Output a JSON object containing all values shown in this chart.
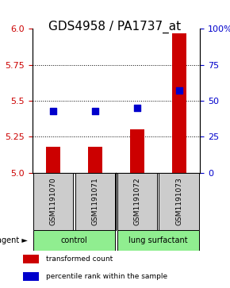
{
  "title": "GDS4958 / PA1737_at",
  "samples": [
    "GSM1191070",
    "GSM1191071",
    "GSM1191072",
    "GSM1191073"
  ],
  "red_values": [
    5.18,
    5.18,
    5.3,
    5.97
  ],
  "blue_values": [
    43,
    43,
    45,
    57
  ],
  "ylim_left": [
    5.0,
    6.0
  ],
  "ylim_right": [
    0,
    100
  ],
  "yticks_left": [
    5.0,
    5.25,
    5.5,
    5.75,
    6.0
  ],
  "yticks_right": [
    0,
    25,
    50,
    75,
    100
  ],
  "groups": [
    {
      "label": "control",
      "span": [
        0,
        2
      ],
      "color": "#90EE90"
    },
    {
      "label": "lung surfactant",
      "span": [
        2,
        4
      ],
      "color": "#90EE90"
    }
  ],
  "group_divider": 2,
  "bar_color": "#CC0000",
  "dot_color": "#0000CC",
  "bar_width": 0.35,
  "dot_size": 40,
  "background_color": "#ffffff",
  "plot_bg_color": "#ffffff",
  "sample_box_color": "#cccccc",
  "left_axis_color": "#CC0000",
  "right_axis_color": "#0000CC",
  "legend_items": [
    {
      "label": "transformed count",
      "color": "#CC0000"
    },
    {
      "label": "percentile rank within the sample",
      "color": "#0000CC"
    }
  ],
  "agent_label": "agent",
  "title_fontsize": 11,
  "tick_fontsize": 8,
  "label_fontsize": 8
}
